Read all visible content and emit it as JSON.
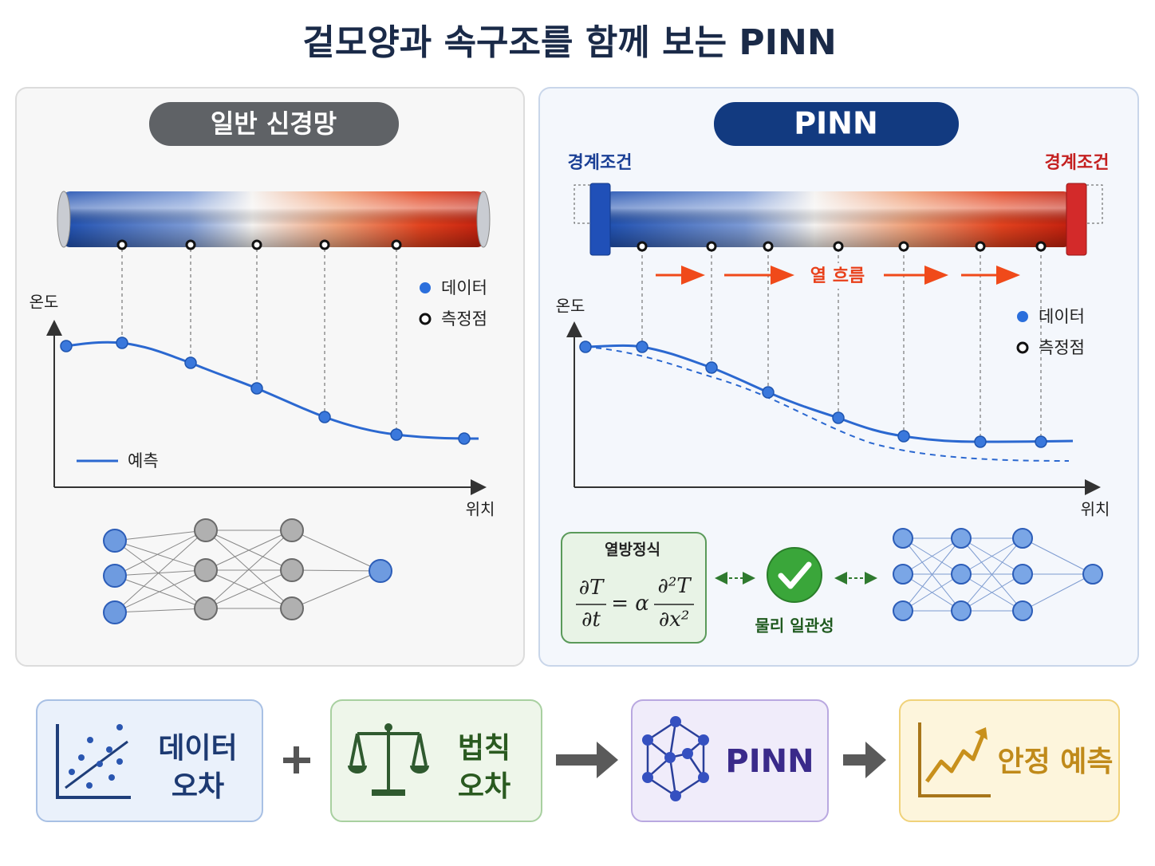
{
  "title": "겉모양과 속구조를 함께 보는 PINN",
  "left_panel": {
    "badge": "일반 신경망",
    "y_axis": "온도",
    "x_axis": "위치",
    "legend": [
      "데이터",
      "측정점"
    ],
    "prediction": "예측"
  },
  "right_panel": {
    "badge": "PINN",
    "boundary_left": "경계조건",
    "boundary_right": "경계조건",
    "heat_flow": "열 흐름",
    "y_axis": "온도",
    "x_axis": "위치",
    "legend": [
      "데이터",
      "측정점"
    ],
    "equation": {
      "title": "열방정식",
      "lhs_num": "∂T",
      "lhs_den": "∂t",
      "op": "= α",
      "rhs_num": "∂²T",
      "rhs_den": "∂x²"
    },
    "consistency": "물리 일관성"
  },
  "bottom": [
    {
      "lines": [
        "데이터",
        "오차"
      ]
    },
    {
      "lines": [
        "법칙",
        "오차"
      ]
    },
    {
      "lines": [
        "PINN"
      ]
    },
    {
      "lines": [
        "안정 예측"
      ]
    }
  ]
}
